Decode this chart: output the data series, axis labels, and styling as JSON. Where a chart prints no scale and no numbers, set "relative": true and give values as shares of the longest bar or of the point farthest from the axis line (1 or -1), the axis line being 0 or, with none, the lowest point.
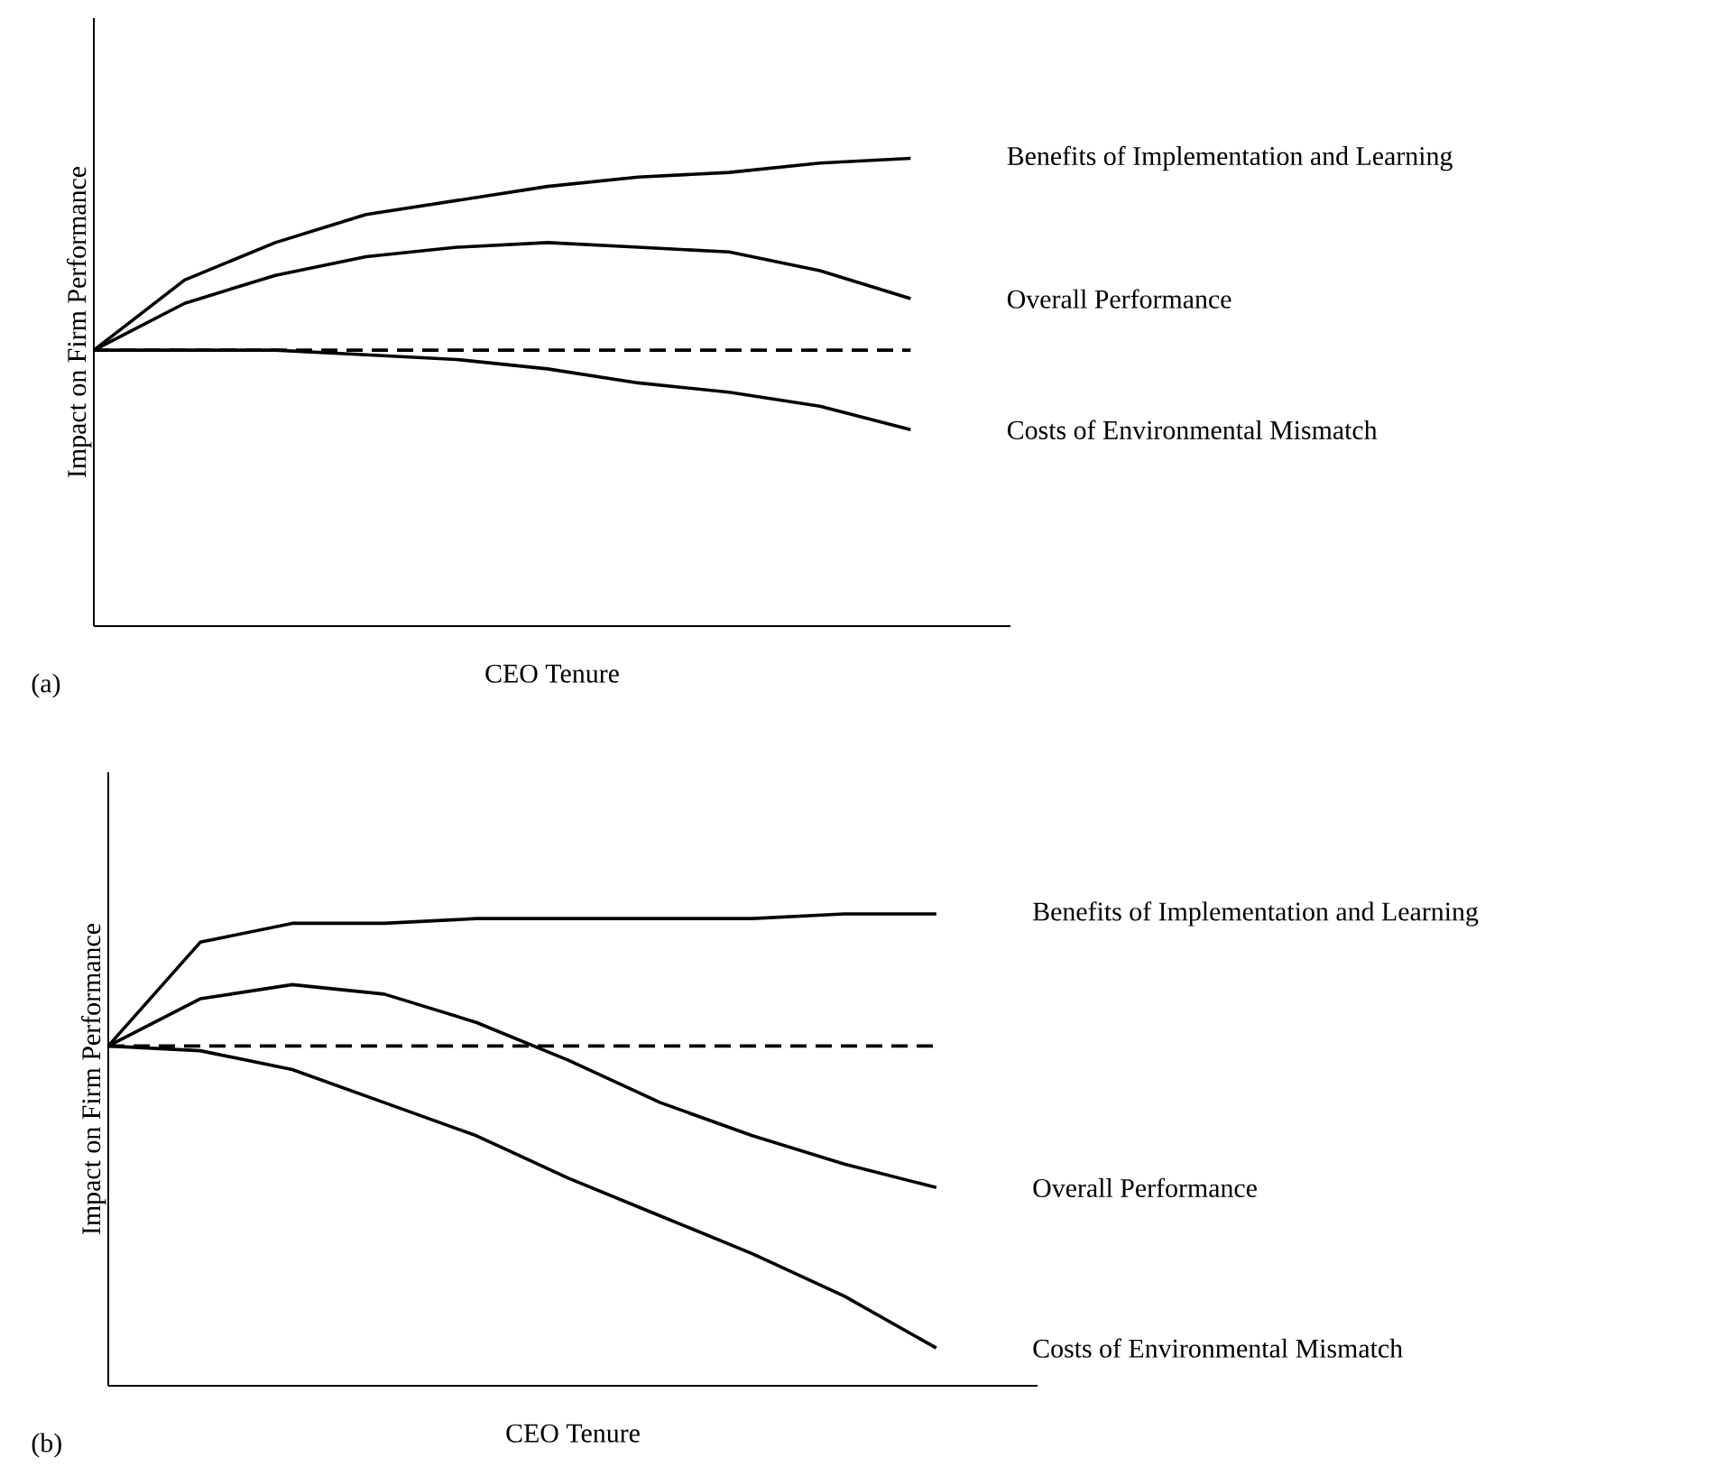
{
  "chart_data": [
    {
      "type": "line",
      "relative": true,
      "xlabel": "CEO Tenure",
      "ylabel": "Impact on Firm Performance",
      "annotations": [
        "(a)"
      ],
      "categories": [
        null,
        null,
        null,
        null,
        null,
        null,
        null,
        null,
        null,
        null
      ],
      "series": [
        {
          "name": "Benefits of Implementation and Learning",
          "color": "#000000",
          "values": [
            0.59,
            0.74,
            0.82,
            0.88,
            0.91,
            0.94,
            0.96,
            0.97,
            0.99,
            1.0
          ]
        },
        {
          "name": "Overall Performance",
          "color": "#000000",
          "values": [
            0.59,
            0.69,
            0.75,
            0.79,
            0.81,
            0.82,
            0.81,
            0.8,
            0.76,
            0.7
          ]
        },
        {
          "color": "#000000",
          "line_style": "dashed",
          "values": [
            0.59,
            0.59,
            0.59,
            0.59,
            0.59,
            0.59,
            0.59,
            0.59,
            0.59,
            0.59
          ]
        },
        {
          "name": "Costs of Environmental Mismatch",
          "color": "#000000",
          "values": [
            0.59,
            0.59,
            0.59,
            0.58,
            0.57,
            0.55,
            0.52,
            0.5,
            0.47,
            0.42
          ]
        }
      ]
    },
    {
      "type": "line",
      "relative": true,
      "xlabel": "CEO Tenure",
      "ylabel": "Impact on Firm Performance",
      "annotations": [
        "(b)"
      ],
      "categories": [
        null,
        null,
        null,
        null,
        null,
        null,
        null,
        null,
        null,
        null
      ],
      "series": [
        {
          "name": "Benefits of Implementation and Learning",
          "color": "#000000",
          "values": [
            0.72,
            0.94,
            0.98,
            0.98,
            0.99,
            0.99,
            0.99,
            0.99,
            1.0,
            1.0
          ]
        },
        {
          "name": "Overall Performance",
          "color": "#000000",
          "values": [
            0.72,
            0.82,
            0.85,
            0.83,
            0.77,
            0.69,
            0.6,
            0.53,
            0.47,
            0.42
          ]
        },
        {
          "color": "#000000",
          "line_style": "dashed",
          "values": [
            0.72,
            0.72,
            0.72,
            0.72,
            0.72,
            0.72,
            0.72,
            0.72,
            0.72,
            0.72
          ]
        },
        {
          "name": "Costs of Environmental Mismatch",
          "color": "#000000",
          "values": [
            0.72,
            0.71,
            0.67,
            0.6,
            0.53,
            0.44,
            0.36,
            0.28,
            0.19,
            0.08
          ]
        }
      ]
    }
  ]
}
